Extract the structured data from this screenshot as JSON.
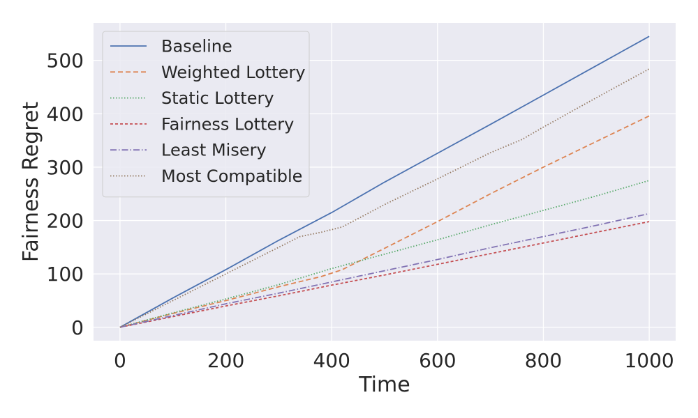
{
  "chart_data": {
    "type": "line",
    "title": "",
    "xlabel": "Time",
    "ylabel": "Fairness Regret",
    "xlim": [
      -50,
      1050
    ],
    "ylim": [
      -25,
      570
    ],
    "xticks": [
      0,
      200,
      400,
      600,
      800,
      1000
    ],
    "yticks": [
      0,
      100,
      200,
      300,
      400,
      500
    ],
    "xtick_labels": [
      "0",
      "200",
      "400",
      "600",
      "800",
      "1000"
    ],
    "ytick_labels": [
      "0",
      "100",
      "200",
      "300",
      "400",
      "500"
    ],
    "grid": true,
    "legend_position": "top-left",
    "background": "#eaeaf2",
    "series": [
      {
        "name": "Baseline",
        "color": "#4c72b0",
        "dash": "solid",
        "x": [
          0,
          100,
          200,
          300,
          400,
          500,
          600,
          700,
          800,
          900,
          1000
        ],
        "y": [
          0,
          55,
          108,
          163,
          215,
          272,
          326,
          380,
          435,
          490,
          545
        ]
      },
      {
        "name": "Weighted Lottery",
        "color": "#dd8452",
        "dash": "dashed",
        "x": [
          0,
          100,
          200,
          300,
          350,
          380,
          420,
          460,
          500,
          600,
          700,
          800,
          900,
          1000
        ],
        "y": [
          0,
          26,
          50,
          76,
          88,
          95,
          108,
          128,
          148,
          198,
          250,
          300,
          348,
          396
        ]
      },
      {
        "name": "Static Lottery",
        "color": "#55a868",
        "dash": "dotted",
        "x": [
          0,
          100,
          200,
          300,
          400,
          500,
          600,
          700,
          800,
          900,
          1000
        ],
        "y": [
          0,
          27,
          53,
          80,
          110,
          137,
          164,
          192,
          219,
          246,
          275
        ]
      },
      {
        "name": "Fairness Lottery",
        "color": "#c44e52",
        "dash": "dashed-short",
        "x": [
          0,
          100,
          200,
          300,
          400,
          500,
          600,
          700,
          800,
          900,
          1000
        ],
        "y": [
          0,
          20,
          40,
          59,
          79,
          98,
          118,
          138,
          158,
          178,
          198
        ]
      },
      {
        "name": "Least Misery",
        "color": "#8172b3",
        "dash": "dashdot",
        "x": [
          0,
          100,
          200,
          300,
          400,
          500,
          600,
          700,
          800,
          900,
          1000
        ],
        "y": [
          0,
          22,
          44,
          64,
          85,
          106,
          127,
          149,
          170,
          191,
          213
        ]
      },
      {
        "name": "Most Compatible",
        "color": "#937860",
        "dash": "dotted",
        "x": [
          0,
          100,
          200,
          300,
          340,
          380,
          420,
          500,
          600,
          700,
          760,
          800,
          900,
          1000
        ],
        "y": [
          0,
          50,
          100,
          150,
          170,
          178,
          188,
          230,
          278,
          327,
          352,
          375,
          430,
          484
        ]
      }
    ]
  }
}
